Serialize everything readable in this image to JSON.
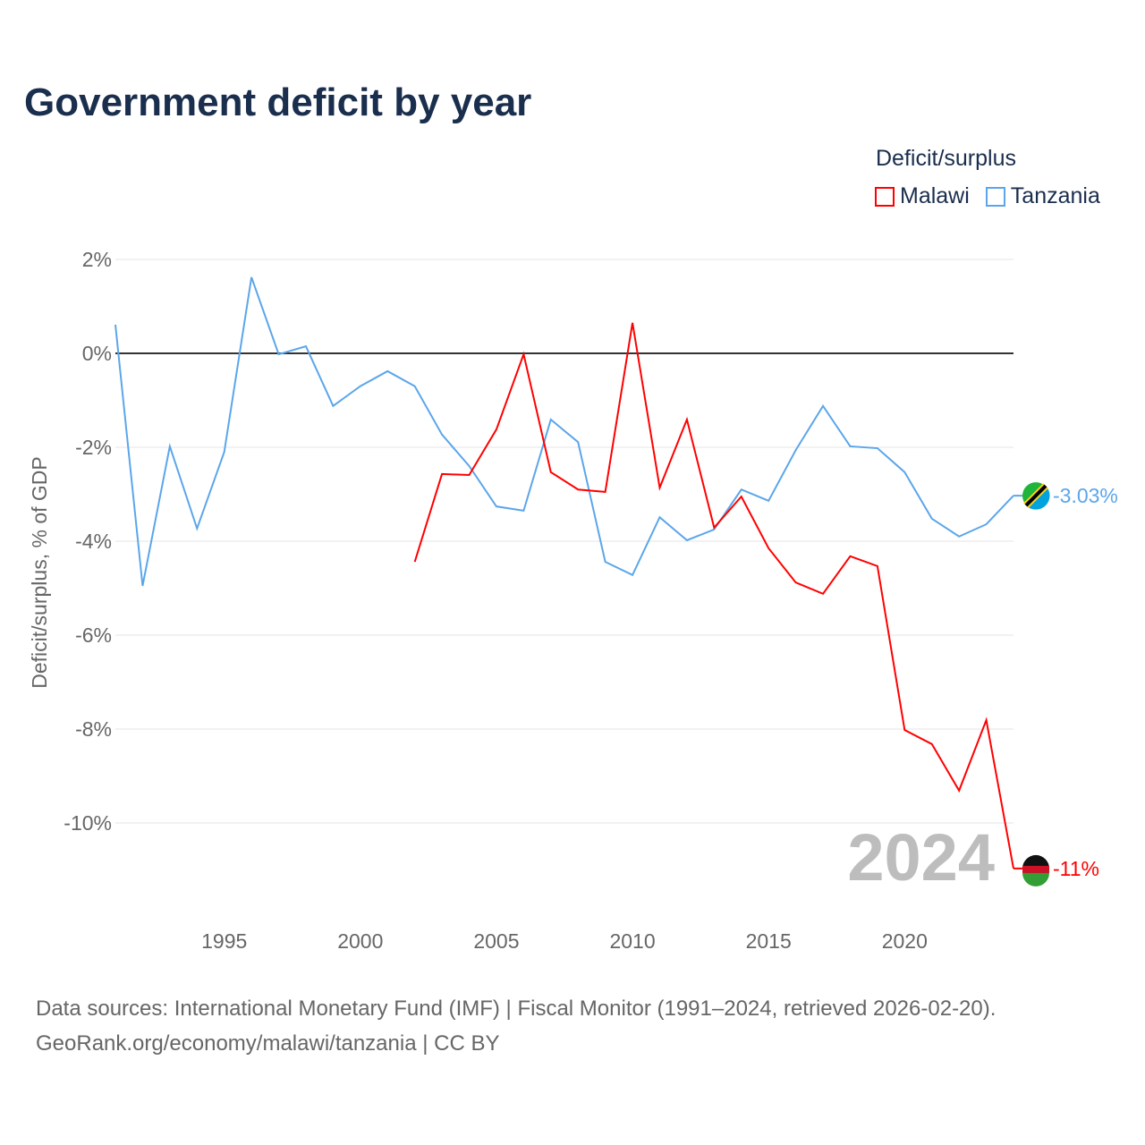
{
  "title": "Government deficit by year",
  "legend": {
    "title": "Deficit/surplus",
    "items": [
      {
        "label": "Malawi",
        "color": "#ff0000"
      },
      {
        "label": "Tanzania",
        "color": "#5ba6ea"
      }
    ]
  },
  "source": {
    "line1": "Data sources: International Monetary Fund (IMF) | Fiscal Monitor (1991–2024, retrieved 2026-02-20).",
    "line2": "GeoRank.org/economy/malawi/tanzania | CC BY"
  },
  "chart_data": {
    "type": "line",
    "title": "Government deficit by year",
    "ylabel": "Deficit/surplus, % of GDP",
    "xlim": [
      1991,
      2024
    ],
    "ylim": [
      -12,
      2
    ],
    "yticks": [
      2,
      0,
      -2,
      -4,
      -6,
      -8,
      -10
    ],
    "ytick_labels": [
      "2%",
      "0%",
      "-2%",
      "-4%",
      "-6%",
      "-8%",
      "-10%"
    ],
    "xticks": [
      1995,
      2000,
      2005,
      2010,
      2015,
      2020
    ],
    "xtick_labels": [
      "1995",
      "2000",
      "2005",
      "2010",
      "2015",
      "2020"
    ],
    "year_watermark": "2024",
    "series": [
      {
        "name": "Tanzania",
        "color": "#5ba6ea",
        "end_label": "-3.03%",
        "x": [
          1991,
          1992,
          1993,
          1994,
          1995,
          1996,
          1997,
          1998,
          1999,
          2000,
          2001,
          2002,
          2003,
          2004,
          2005,
          2006,
          2007,
          2008,
          2009,
          2010,
          2011,
          2012,
          2013,
          2014,
          2015,
          2016,
          2017,
          2018,
          2019,
          2020,
          2021,
          2022,
          2023,
          2024
        ],
        "values": [
          0.61,
          -4.95,
          -1.98,
          -3.73,
          -2.1,
          1.62,
          -0.02,
          0.15,
          -1.12,
          -0.7,
          -0.38,
          -0.7,
          -1.73,
          -2.4,
          -3.26,
          -3.35,
          -1.41,
          -1.89,
          -4.44,
          -4.72,
          -3.49,
          -3.98,
          -3.75,
          -2.9,
          -3.14,
          -2.06,
          -1.12,
          -1.98,
          -2.02,
          -2.53,
          -3.52,
          -3.9,
          -3.64,
          -3.03
        ]
      },
      {
        "name": "Malawi",
        "color": "#ff0000",
        "end_label": "-11%",
        "x": [
          2002,
          2003,
          2004,
          2005,
          2006,
          2007,
          2008,
          2009,
          2010,
          2011,
          2012,
          2013,
          2014,
          2015,
          2016,
          2017,
          2018,
          2019,
          2020,
          2021,
          2022,
          2023,
          2024
        ],
        "values": [
          -4.44,
          -2.57,
          -2.59,
          -1.62,
          -0.02,
          -2.53,
          -2.9,
          -2.95,
          0.65,
          -2.86,
          -1.41,
          -3.71,
          -3.05,
          -4.15,
          -4.88,
          -5.12,
          -4.32,
          -4.53,
          -8.02,
          -8.32,
          -9.31,
          -7.81,
          -10.97
        ]
      }
    ]
  }
}
